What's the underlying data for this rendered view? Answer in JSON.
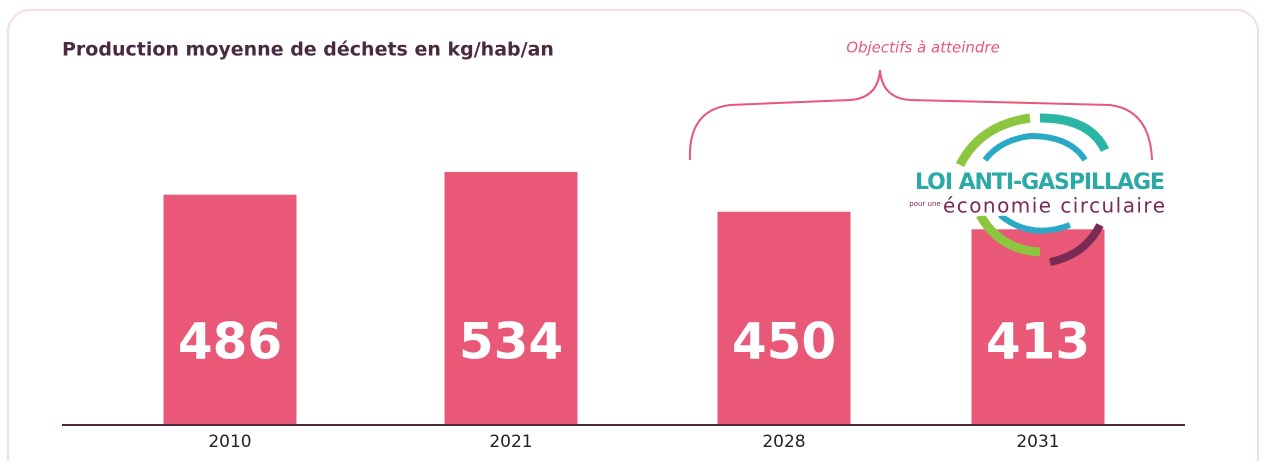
{
  "chart_data": {
    "type": "bar",
    "title": "Production moyenne de déchets en kg/hab/an",
    "annotation": "Objectifs à atteindre",
    "categories": [
      "2010",
      "2021",
      "2028",
      "2031"
    ],
    "values": [
      486,
      534,
      450,
      413
    ],
    "color": "#e95877",
    "ylim": [
      0,
      880
    ]
  },
  "logo": {
    "title": "LOI ANTI-GASPILLAGE",
    "prefix": "pour une",
    "subtitle": "économie circulaire"
  }
}
